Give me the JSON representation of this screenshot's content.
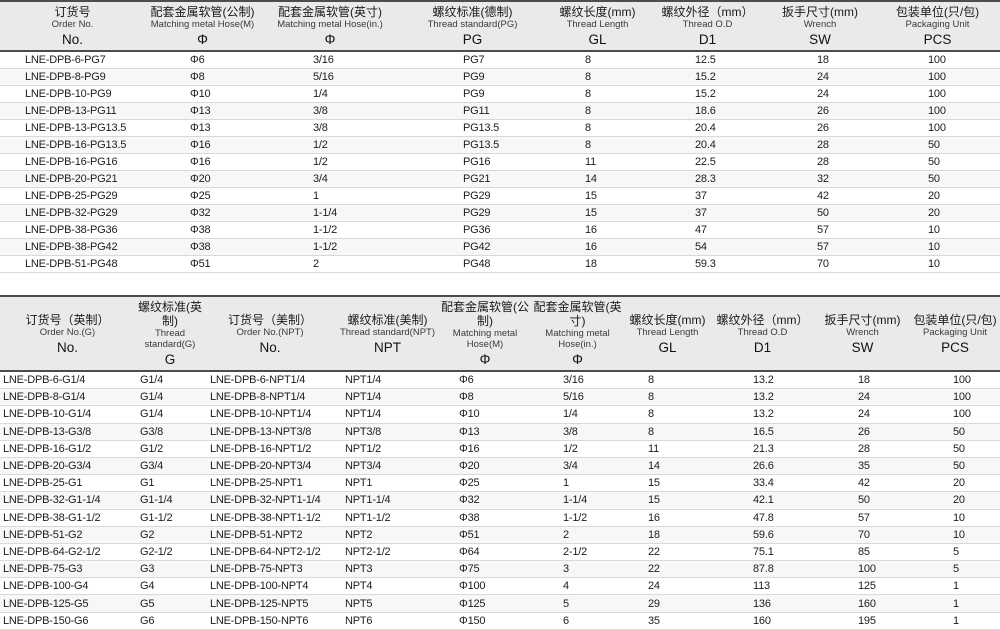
{
  "colors": {
    "header_bg": "#eaeaea",
    "dark_rule": "#4d4d4d",
    "row_separator": "#d9d9d9",
    "text": "#1c1c1c"
  },
  "tables": [
    {
      "name": "pg-metric-spec-table",
      "columns": [
        {
          "zh": "订货号",
          "en": "Order No.",
          "sym": "No."
        },
        {
          "zh": "配套金属软管(公制)",
          "en": "Matching metal Hose(M)",
          "sym": "Φ"
        },
        {
          "zh": "配套金属软管(英寸)",
          "en": "Matching metal Hose(in.)",
          "sym": "Φ"
        },
        {
          "zh": "螺纹标准(德制)",
          "en": "Thread standard(PG)",
          "sym": "PG"
        },
        {
          "zh": "螺纹长度(mm)",
          "en": "Thread  Length",
          "sym": "GL"
        },
        {
          "zh": "螺纹外径（mm）",
          "en": "Thread O.D",
          "sym": "D1"
        },
        {
          "zh": "扳手尺寸(mm)",
          "en": "Wrench",
          "sym": "SW"
        },
        {
          "zh": "包装单位(只/包)",
          "en": "Packaging Unit",
          "sym": "PCS"
        }
      ],
      "rows": [
        [
          "LNE-DPB-6-PG7",
          "Φ6",
          "3/16",
          "PG7",
          "8",
          "12.5",
          "18",
          "100"
        ],
        [
          "LNE-DPB-8-PG9",
          "Φ8",
          "5/16",
          "PG9",
          "8",
          "15.2",
          "24",
          "100"
        ],
        [
          "LNE-DPB-10-PG9",
          "Φ10",
          "1/4",
          "PG9",
          "8",
          "15.2",
          "24",
          "100"
        ],
        [
          "LNE-DPB-13-PG11",
          "Φ13",
          "3/8",
          "PG11",
          "8",
          "18.6",
          "26",
          "100"
        ],
        [
          "LNE-DPB-13-PG13.5",
          "Φ13",
          "3/8",
          "PG13.5",
          "8",
          "20.4",
          "26",
          "100"
        ],
        [
          "LNE-DPB-16-PG13.5",
          "Φ16",
          "1/2",
          "PG13.5",
          "8",
          "20.4",
          "28",
          "50"
        ],
        [
          "LNE-DPB-16-PG16",
          "Φ16",
          "1/2",
          "PG16",
          "11",
          "22.5",
          "28",
          "50"
        ],
        [
          "LNE-DPB-20-PG21",
          "Φ20",
          "3/4",
          "PG21",
          "14",
          "28.3",
          "32",
          "50"
        ],
        [
          "LNE-DPB-25-PG29",
          "Φ25",
          "1",
          "PG29",
          "15",
          "37",
          "42",
          "20"
        ],
        [
          "LNE-DPB-32-PG29",
          "Φ32",
          "1-1/4",
          "PG29",
          "15",
          "37",
          "50",
          "20"
        ],
        [
          "LNE-DPB-38-PG36",
          "Φ38",
          "1-1/2",
          "PG36",
          "16",
          "47",
          "57",
          "10"
        ],
        [
          "LNE-DPB-38-PG42",
          "Φ38",
          "1-1/2",
          "PG42",
          "16",
          "54",
          "57",
          "10"
        ],
        [
          "LNE-DPB-51-PG48",
          "Φ51",
          "2",
          "PG48",
          "18",
          "59.3",
          "70",
          "10"
        ]
      ]
    },
    {
      "name": "g-npt-spec-table",
      "columns": [
        {
          "zh": "订货号（英制）",
          "en": "Order No.(G)",
          "sym": "No."
        },
        {
          "zh": "螺纹标准(英制)",
          "en": "Thread standard(G)",
          "sym": "G"
        },
        {
          "zh": "订货号（美制）",
          "en": "Order No.(NPT)",
          "sym": "No."
        },
        {
          "zh": "螺纹标准(美制)",
          "en": "Thread standard(NPT)",
          "sym": "NPT"
        },
        {
          "zh": "配套金属软管(公制)",
          "en": "Matching metal Hose(M)",
          "sym": "Φ"
        },
        {
          "zh": "配套金属软管(英寸)",
          "en": "Matching metal Hose(in.)",
          "sym": "Φ"
        },
        {
          "zh": "螺纹长度(mm)",
          "en": "Thread  Length",
          "sym": "GL"
        },
        {
          "zh": "螺纹外径（mm）",
          "en": "Thread O.D",
          "sym": "D1"
        },
        {
          "zh": "扳手尺寸(mm)",
          "en": "Wrench",
          "sym": "SW"
        },
        {
          "zh": "包装单位(只/包)",
          "en": "Packaging Unit",
          "sym": "PCS"
        }
      ],
      "rows": [
        [
          "LNE-DPB-6-G1/4",
          "G1/4",
          "LNE-DPB-6-NPT1/4",
          "NPT1/4",
          "Φ6",
          "3/16",
          "8",
          "13.2",
          "18",
          "100"
        ],
        [
          "LNE-DPB-8-G1/4",
          "G1/4",
          "LNE-DPB-8-NPT1/4",
          "NPT1/4",
          "Φ8",
          "5/16",
          "8",
          "13.2",
          "24",
          "100"
        ],
        [
          "LNE-DPB-10-G1/4",
          "G1/4",
          "LNE-DPB-10-NPT1/4",
          "NPT1/4",
          "Φ10",
          "1/4",
          "8",
          "13.2",
          "24",
          "100"
        ],
        [
          "LNE-DPB-13-G3/8",
          "G3/8",
          "LNE-DPB-13-NPT3/8",
          "NPT3/8",
          "Φ13",
          "3/8",
          "8",
          "16.5",
          "26",
          "50"
        ],
        [
          "LNE-DPB-16-G1/2",
          "G1/2",
          "LNE-DPB-16-NPT1/2",
          "NPT1/2",
          "Φ16",
          "1/2",
          "11",
          "21.3",
          "28",
          "50"
        ],
        [
          "LNE-DPB-20-G3/4",
          "G3/4",
          "LNE-DPB-20-NPT3/4",
          "NPT3/4",
          "Φ20",
          "3/4",
          "14",
          "26.6",
          "35",
          "50"
        ],
        [
          "LNE-DPB-25-G1",
          "G1",
          "LNE-DPB-25-NPT1",
          "NPT1",
          "Φ25",
          "1",
          "15",
          "33.4",
          "42",
          "20"
        ],
        [
          "LNE-DPB-32-G1-1/4",
          "G1-1/4",
          "LNE-DPB-32-NPT1-1/4",
          "NPT1-1/4",
          "Φ32",
          "1-1/4",
          "15",
          "42.1",
          "50",
          "20"
        ],
        [
          "LNE-DPB-38-G1-1/2",
          "G1-1/2",
          "LNE-DPB-38-NPT1-1/2",
          "NPT1-1/2",
          "Φ38",
          "1-1/2",
          "16",
          "47.8",
          "57",
          "10"
        ],
        [
          "LNE-DPB-51-G2",
          "G2",
          "LNE-DPB-51-NPT2",
          "NPT2",
          "Φ51",
          "2",
          "18",
          "59.6",
          "70",
          "10"
        ],
        [
          "LNE-DPB-64-G2-1/2",
          "G2-1/2",
          "LNE-DPB-64-NPT2-1/2",
          "NPT2-1/2",
          "Φ64",
          "2-1/2",
          "22",
          "75.1",
          "85",
          "5"
        ],
        [
          "LNE-DPB-75-G3",
          "G3",
          "LNE-DPB-75-NPT3",
          "NPT3",
          "Φ75",
          "3",
          "22",
          "87.8",
          "100",
          "5"
        ],
        [
          "LNE-DPB-100-G4",
          "G4",
          "LNE-DPB-100-NPT4",
          "NPT4",
          "Φ100",
          "4",
          "24",
          "113",
          "125",
          "1"
        ],
        [
          "LNE-DPB-125-G5",
          "G5",
          "LNE-DPB-125-NPT5",
          "NPT5",
          "Φ125",
          "5",
          "29",
          "136",
          "160",
          "1"
        ],
        [
          "LNE-DPB-150-G6",
          "G6",
          "LNE-DPB-150-NPT6",
          "NPT6",
          "Φ150",
          "6",
          "35",
          "160",
          "195",
          "1"
        ]
      ]
    }
  ]
}
